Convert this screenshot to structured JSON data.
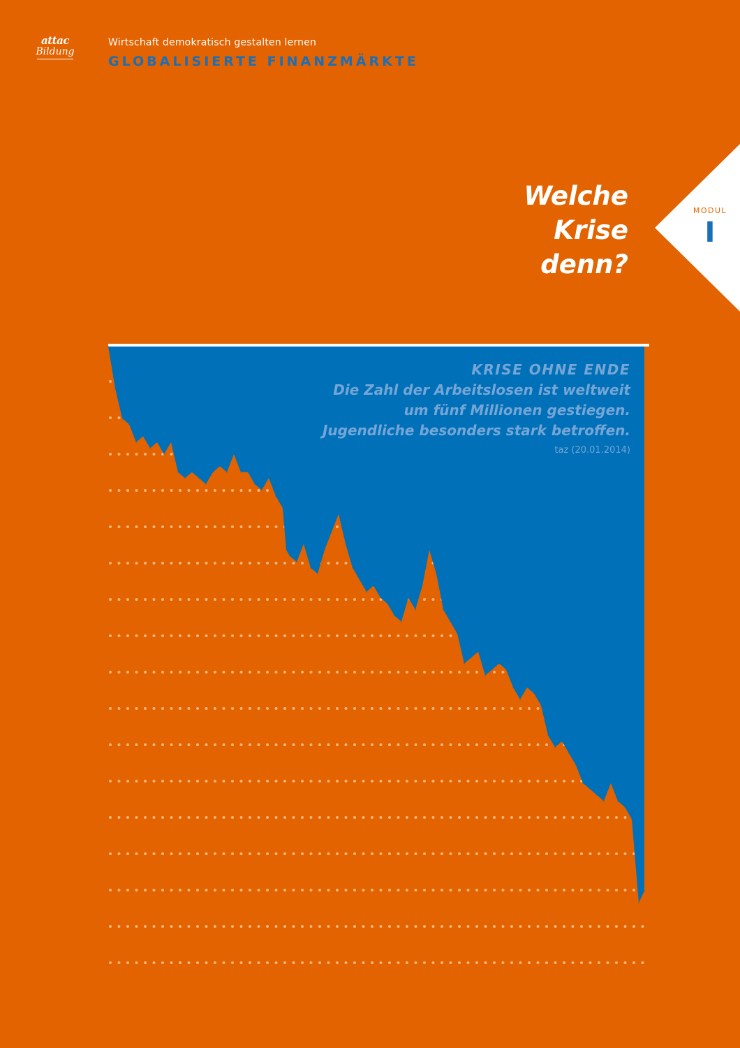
{
  "logo": {
    "brand": "attac",
    "sub": "Bildung"
  },
  "series": {
    "subtitle": "Wirtschaft demokratisch gestalten lernen",
    "title": "GLOBALISIERTE FINANZMÄRKTE"
  },
  "headline": {
    "line1": "Welche",
    "line2": "Krise",
    "line3": "denn?"
  },
  "modul": {
    "label": "MODUL",
    "number": "I"
  },
  "quote": {
    "kicker": "KRISE OHNE ENDE",
    "line1": "Die Zahl der Arbeitslosen ist weltweit",
    "line2": "um fünf Millionen gestiegen.",
    "line3": "Jugendliche besonders stark betroffen.",
    "source": "taz (20.01.2014)"
  },
  "colors": {
    "background": "#e26300",
    "accent_blue": "#1a6fb8",
    "fill_blue": "#0070b8",
    "quote_blue": "#76a6d6",
    "white": "#ffffff",
    "dots": "#f4b47c"
  },
  "chart_data": {
    "type": "area",
    "description_type": "decorative declining line filled above",
    "x": [
      0,
      10,
      20,
      30,
      40,
      50,
      60,
      70,
      80,
      90,
      100,
      110,
      120,
      130,
      140,
      150,
      160,
      170,
      180,
      190,
      200,
      210,
      220,
      230,
      240,
      250,
      255,
      260,
      270,
      280,
      290,
      300,
      310,
      320,
      330,
      340,
      350,
      360,
      370,
      380,
      390,
      400,
      410,
      420,
      430,
      440,
      450,
      460,
      470,
      480,
      490,
      500,
      510,
      520,
      530,
      540,
      550,
      560,
      570,
      580,
      590,
      600,
      610,
      620,
      630,
      640,
      650,
      660,
      670,
      680,
      690,
      700,
      710,
      720,
      730,
      740,
      750,
      760,
      768
    ],
    "values": [
      100,
      93,
      88,
      87,
      84,
      85,
      83,
      84,
      82,
      84,
      79,
      78,
      79,
      78,
      77,
      79,
      80,
      79,
      82,
      79,
      79,
      77,
      76,
      78,
      75,
      73,
      66,
      65,
      64,
      67,
      63,
      62,
      66,
      69,
      72,
      67,
      63,
      61,
      59,
      60,
      58,
      57,
      55,
      54,
      58,
      56,
      60,
      66,
      62,
      56,
      54,
      52,
      47,
      48,
      49,
      45,
      46,
      47,
      46,
      43,
      41,
      43,
      42,
      40,
      35,
      33,
      34,
      32,
      30,
      27,
      26,
      25,
      24,
      27,
      24,
      23,
      21,
      7,
      9
    ],
    "ylim": [
      0,
      100
    ],
    "grid": true
  }
}
